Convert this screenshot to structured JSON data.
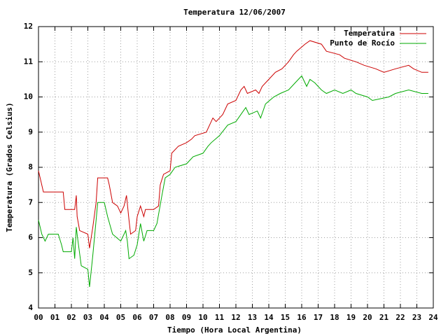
{
  "chart_data": {
    "type": "line",
    "title": "Temperatura 12/06/2007",
    "x_label": "Tiempo (Hora Local Argentina)",
    "y_label": "Temperatura (Grados Celsius)",
    "xlim": [
      0,
      24
    ],
    "ylim": [
      4,
      12
    ],
    "xticks": [
      {
        "value": 0,
        "label": "00"
      },
      {
        "value": 1,
        "label": "01"
      },
      {
        "value": 2,
        "label": "02"
      },
      {
        "value": 3,
        "label": "03"
      },
      {
        "value": 4,
        "label": "04"
      },
      {
        "value": 5,
        "label": "05"
      },
      {
        "value": 6,
        "label": "06"
      },
      {
        "value": 7,
        "label": "07"
      },
      {
        "value": 8,
        "label": "08"
      },
      {
        "value": 9,
        "label": "09"
      },
      10,
      11,
      12,
      13,
      14,
      15,
      16,
      17,
      18,
      19,
      20,
      21,
      22,
      23,
      24
    ],
    "yticks": [
      4,
      5,
      6,
      7,
      8,
      9,
      10,
      11,
      12
    ],
    "grid": true,
    "legend": "top-right",
    "series": [
      {
        "name": "Temperatura",
        "color": "#cc0000",
        "x": [
          0,
          0.3,
          1.5,
          1.6,
          2.2,
          2.3,
          2.35,
          2.5,
          3.0,
          3.1,
          3.3,
          3.5,
          3.6,
          4.2,
          4.3,
          4.5,
          4.8,
          5.0,
          5.2,
          5.35,
          5.5,
          5.6,
          5.9,
          6.0,
          6.2,
          6.4,
          6.5,
          7.0,
          7.3,
          7.4,
          7.6,
          8.0,
          8.1,
          8.5,
          9.0,
          9.3,
          9.5,
          10.2,
          10.4,
          10.6,
          10.8,
          11.2,
          11.5,
          12.0,
          12.3,
          12.5,
          12.7,
          13.2,
          13.4,
          13.6,
          14.0,
          14.4,
          14.8,
          15.2,
          15.5,
          15.7,
          16.2,
          16.5,
          17.2,
          17.5,
          18.3,
          18.6,
          19.3,
          19.8,
          20.5,
          21.0,
          21.7,
          22.5,
          22.8,
          23.3,
          23.7
        ],
        "values": [
          7.9,
          7.3,
          7.3,
          6.8,
          6.8,
          7.2,
          6.6,
          6.2,
          6.1,
          5.7,
          6.3,
          7.0,
          7.7,
          7.7,
          7.5,
          7.0,
          6.9,
          6.7,
          6.9,
          7.2,
          6.5,
          6.1,
          6.2,
          6.6,
          6.9,
          6.6,
          6.8,
          6.8,
          6.9,
          7.5,
          7.8,
          7.9,
          8.4,
          8.6,
          8.7,
          8.8,
          8.9,
          9.0,
          9.2,
          9.4,
          9.3,
          9.5,
          9.8,
          9.9,
          10.2,
          10.3,
          10.1,
          10.2,
          10.1,
          10.3,
          10.5,
          10.7,
          10.8,
          11.0,
          11.2,
          11.3,
          11.5,
          11.6,
          11.5,
          11.3,
          11.2,
          11.1,
          11.0,
          10.9,
          10.8,
          10.7,
          10.8,
          10.9,
          10.8,
          10.7,
          10.7
        ]
      },
      {
        "name": "Punto de Rocío",
        "color": "#00aa00",
        "x": [
          0,
          0.2,
          0.4,
          0.6,
          1.2,
          1.4,
          1.5,
          2.0,
          2.1,
          2.2,
          2.3,
          2.4,
          2.6,
          3.0,
          3.1,
          3.3,
          3.5,
          3.6,
          4.0,
          4.2,
          4.5,
          5.0,
          5.3,
          5.4,
          5.5,
          5.8,
          6.0,
          6.2,
          6.4,
          6.6,
          7.0,
          7.2,
          7.5,
          7.7,
          8.0,
          8.3,
          9.0,
          9.4,
          10.0,
          10.3,
          10.5,
          11.0,
          11.5,
          12.0,
          12.3,
          12.6,
          12.8,
          13.3,
          13.5,
          13.8,
          14.3,
          14.7,
          15.2,
          15.6,
          16.0,
          16.3,
          16.5,
          16.8,
          17.2,
          17.5,
          18.0,
          18.5,
          19.0,
          19.3,
          20.0,
          20.3,
          21.3,
          21.7,
          22.5,
          23.3,
          23.7
        ],
        "values": [
          6.5,
          6.1,
          5.9,
          6.1,
          6.1,
          5.8,
          5.6,
          5.6,
          6.0,
          5.4,
          6.3,
          5.9,
          5.2,
          5.1,
          4.6,
          5.5,
          6.5,
          7.0,
          7.0,
          6.6,
          6.1,
          5.9,
          6.2,
          5.9,
          5.4,
          5.5,
          5.8,
          6.4,
          5.9,
          6.2,
          6.2,
          6.4,
          7.2,
          7.7,
          7.8,
          8.0,
          8.1,
          8.3,
          8.4,
          8.6,
          8.7,
          8.9,
          9.2,
          9.3,
          9.5,
          9.7,
          9.5,
          9.6,
          9.4,
          9.8,
          10.0,
          10.1,
          10.2,
          10.4,
          10.6,
          10.3,
          10.5,
          10.4,
          10.2,
          10.1,
          10.2,
          10.1,
          10.2,
          10.1,
          10.0,
          9.9,
          10.0,
          10.1,
          10.2,
          10.1,
          10.1
        ]
      }
    ]
  }
}
